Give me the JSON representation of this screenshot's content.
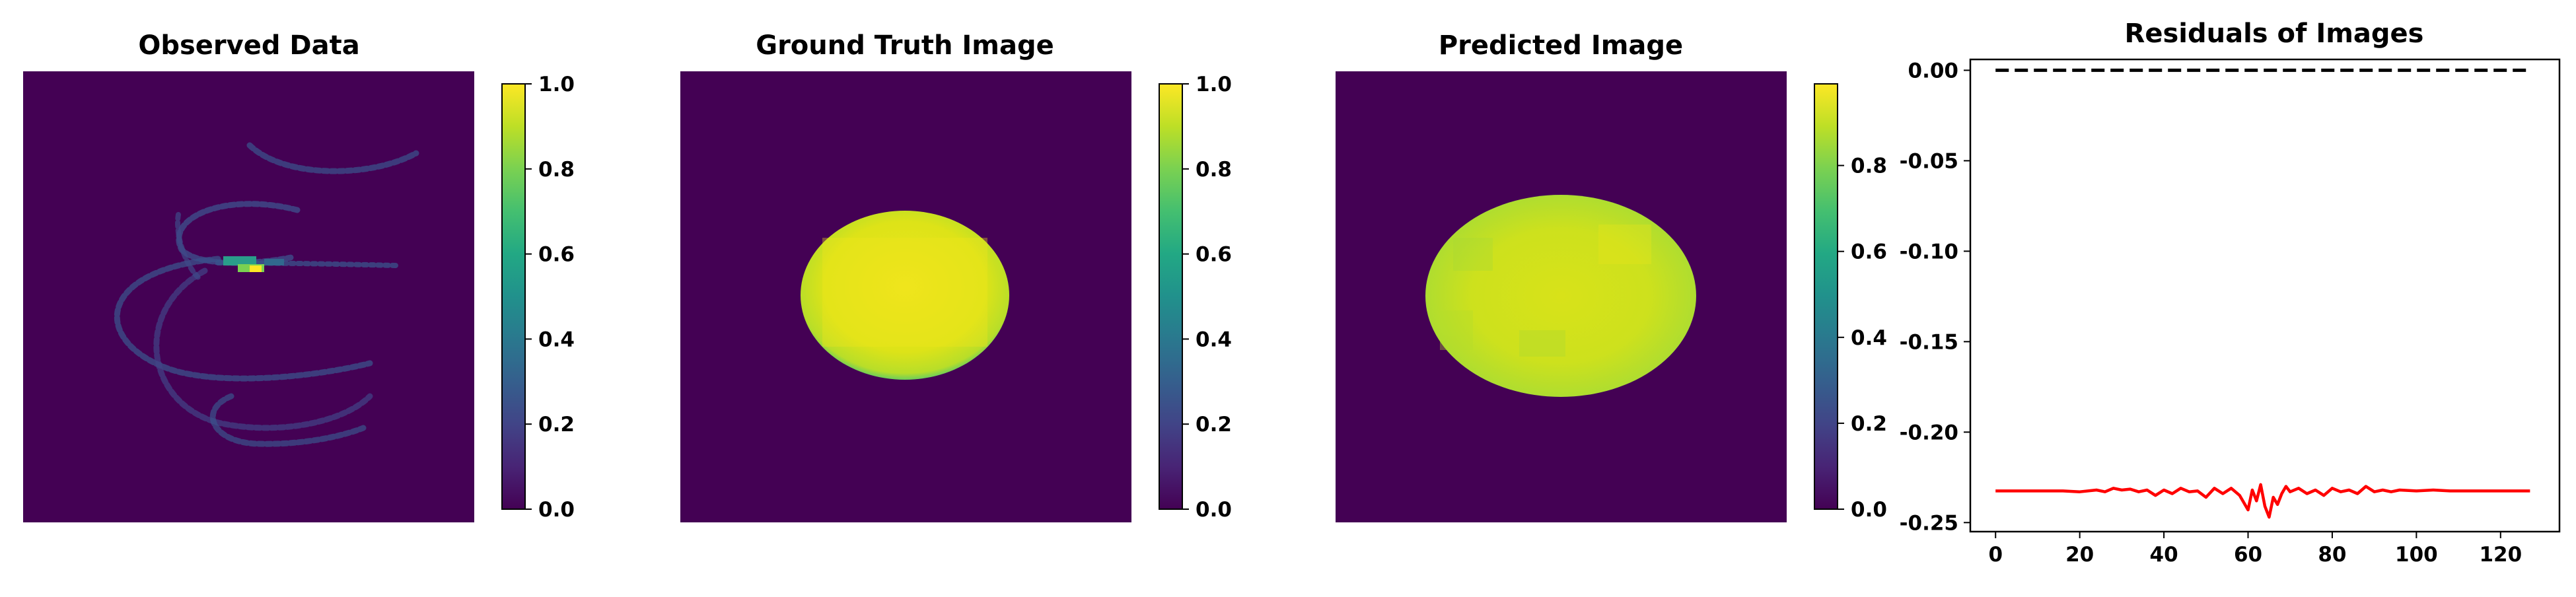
{
  "colors": {
    "bg_dark": "#440154",
    "disk_yellow": "#e3e31a",
    "disk_green": "#bfdf2c",
    "disk_edge": "#2fb47c",
    "residual_line": "#ff0000",
    "zero_line": "#000000"
  },
  "chart_data": [
    {
      "type": "heatmap",
      "title": "Observed Data",
      "colorbar": {
        "min": 0.0,
        "max": 1.0,
        "ticks": [
          "0.0",
          "0.2",
          "0.4",
          "0.6",
          "0.8",
          "1.0"
        ]
      }
    },
    {
      "type": "heatmap",
      "title": "Ground Truth Image",
      "colorbar": {
        "min": 0.0,
        "max": 1.0,
        "ticks": [
          "0.0",
          "0.2",
          "0.4",
          "0.6",
          "0.8",
          "1.0"
        ]
      }
    },
    {
      "type": "heatmap",
      "title": "Predicted Image",
      "colorbar": {
        "min": 0.0,
        "max": 0.99,
        "ticks": [
          "0.0",
          "0.2",
          "0.4",
          "0.6",
          "0.8"
        ]
      }
    },
    {
      "type": "line",
      "title": "Residuals of Images",
      "xlim": [
        -6,
        134
      ],
      "ylim": [
        -0.255,
        0.006
      ],
      "xticks": [
        0,
        20,
        40,
        60,
        80,
        100,
        120
      ],
      "yticks": [
        "0.00",
        "-0.05",
        "-0.10",
        "-0.15",
        "-0.20",
        "-0.25"
      ],
      "ytick_values": [
        0.0,
        -0.05,
        -0.1,
        -0.15,
        -0.2,
        -0.25
      ],
      "reference_line": {
        "y": 0.0,
        "style": "dashed"
      },
      "series": [
        {
          "x": [
            0,
            4,
            8,
            12,
            16,
            20,
            24,
            26,
            28,
            30,
            32,
            34,
            36,
            38,
            40,
            42,
            44,
            46,
            48,
            50,
            52,
            54,
            56,
            58,
            60,
            61,
            62,
            63,
            64,
            65,
            66,
            67,
            68,
            69,
            70,
            72,
            74,
            76,
            78,
            80,
            82,
            84,
            86,
            88,
            90,
            92,
            94,
            96,
            100,
            104,
            108,
            112,
            116,
            120,
            124,
            127
          ],
          "y": [
            -0.2325,
            -0.2325,
            -0.2325,
            -0.2325,
            -0.2325,
            -0.233,
            -0.232,
            -0.233,
            -0.231,
            -0.232,
            -0.2315,
            -0.233,
            -0.232,
            -0.235,
            -0.232,
            -0.234,
            -0.231,
            -0.233,
            -0.2325,
            -0.236,
            -0.231,
            -0.234,
            -0.231,
            -0.235,
            -0.243,
            -0.232,
            -0.238,
            -0.229,
            -0.241,
            -0.247,
            -0.236,
            -0.24,
            -0.234,
            -0.23,
            -0.233,
            -0.231,
            -0.234,
            -0.232,
            -0.235,
            -0.231,
            -0.233,
            -0.232,
            -0.234,
            -0.23,
            -0.233,
            -0.232,
            -0.233,
            -0.232,
            -0.2325,
            -0.232,
            -0.2325,
            -0.2325,
            -0.2325,
            -0.2325,
            -0.2325,
            -0.2325
          ]
        }
      ]
    }
  ]
}
